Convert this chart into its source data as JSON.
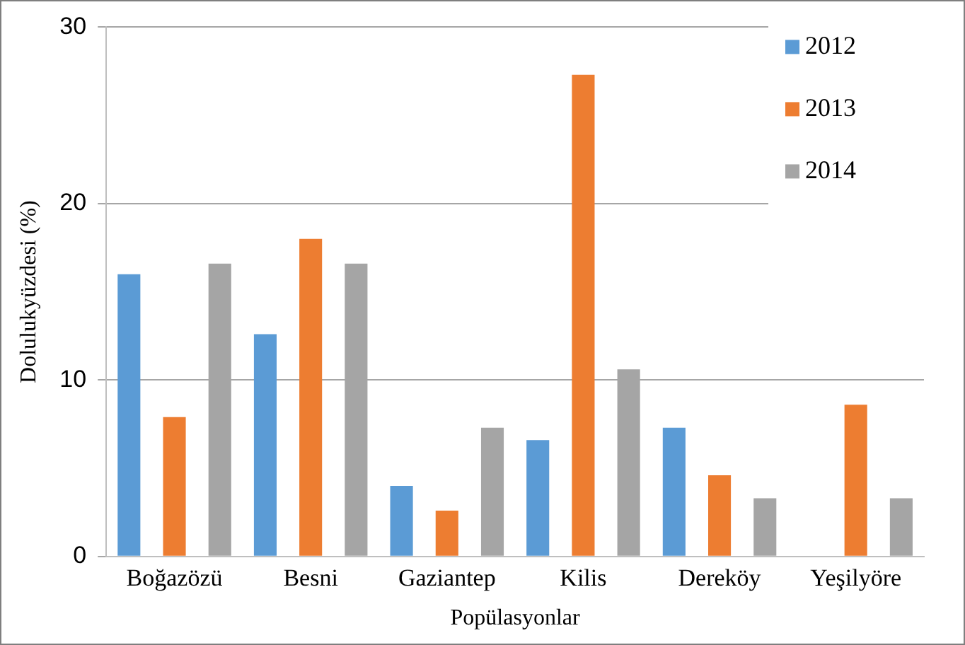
{
  "chart_data": {
    "type": "bar",
    "xlabel": "Popülasyonlar",
    "ylabel": "Dolulukyüzdesi (%)",
    "categories": [
      "Boğazözü",
      "Besni",
      "Gaziantep",
      "Kilis",
      "Dereköy",
      "Yeşilyöre"
    ],
    "series": [
      {
        "name": "2012",
        "color": "#5b9bd5",
        "values": [
          16,
          12.6,
          4,
          6.6,
          7.3,
          null
        ]
      },
      {
        "name": "2013",
        "color": "#ed7d31",
        "values": [
          7.9,
          18,
          2.6,
          27.3,
          4.6,
          8.6
        ]
      },
      {
        "name": "2014",
        "color": "#a5a5a5",
        "values": [
          16.6,
          16.6,
          7.3,
          10.6,
          3.3,
          3.3
        ]
      }
    ],
    "ylim": [
      0,
      30
    ],
    "yticks": [
      0,
      10,
      20,
      30
    ],
    "grid": "y",
    "legend": "top right"
  }
}
